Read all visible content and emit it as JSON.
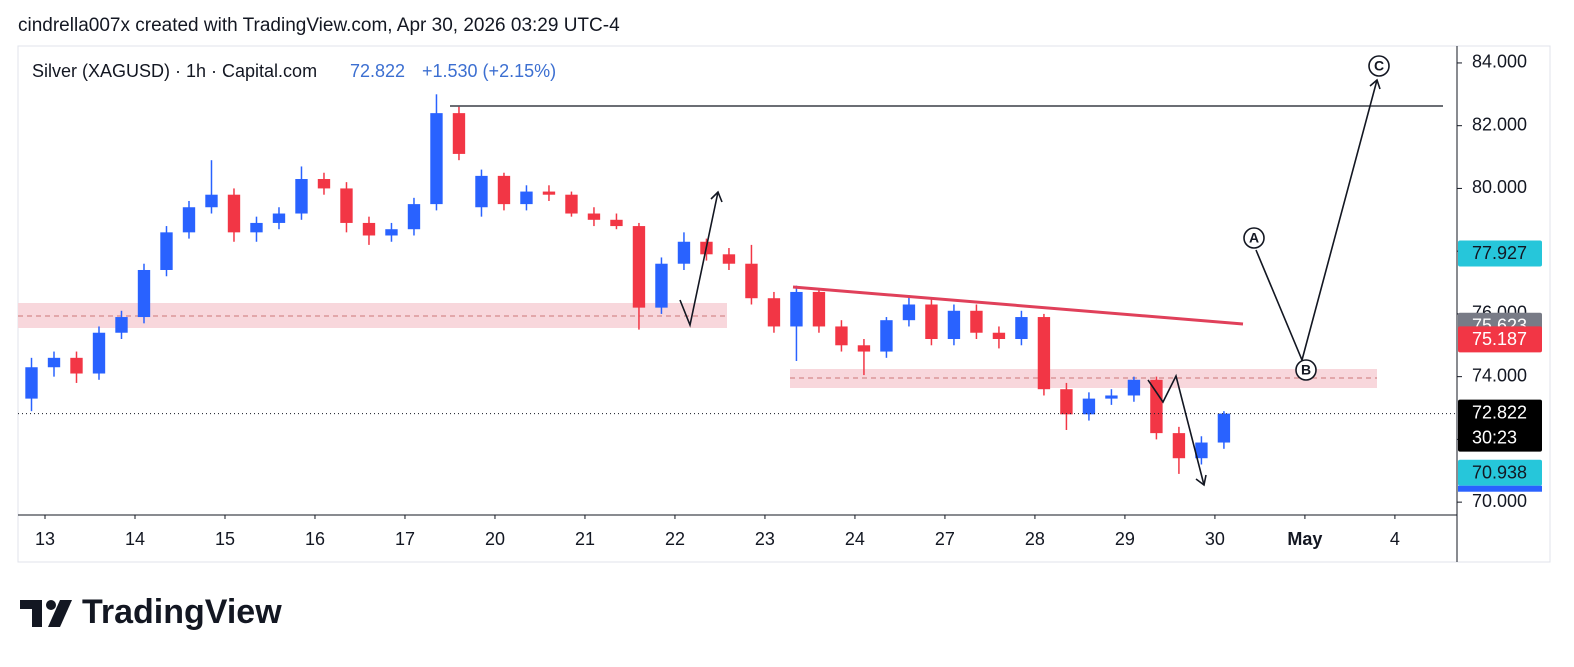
{
  "header": "cindrella007x created with TradingView.com, Apr 30, 2026 03:29 UTC-4",
  "brand": "TradingView",
  "chart_data": {
    "type": "candlestick",
    "title": "Silver (XAGUSD) · 1h · Capital.com",
    "change": "+1.530 (+2.15%)",
    "countdown": "30:23",
    "annotations": [
      "A",
      "B",
      "C"
    ],
    "up_color": "#2962ff",
    "down_color": "#f23645",
    "grid": false,
    "x": [
      -0.15,
      0.1,
      0.35,
      0.6,
      0.85,
      1.1,
      1.35,
      1.6,
      1.85,
      2.1,
      2.35,
      2.6,
      2.85,
      3.1,
      3.35,
      3.6,
      3.85,
      4.1,
      4.35,
      4.6,
      4.85,
      5.1,
      5.35,
      5.6,
      5.85,
      6.1,
      6.35,
      6.6,
      6.85,
      7.1,
      7.35,
      7.6,
      7.85,
      8.1,
      8.35,
      8.6,
      8.85,
      9.1,
      9.35,
      9.6,
      9.85,
      10.1,
      10.35,
      10.6,
      10.85,
      11.1,
      11.35,
      11.6,
      11.85,
      12.1,
      12.35,
      12.6,
      12.85,
      13.1
    ],
    "open": [
      73.3,
      74.3,
      74.6,
      74.1,
      75.4,
      75.9,
      77.4,
      78.6,
      79.4,
      79.8,
      78.6,
      78.9,
      79.2,
      80.3,
      80.0,
      78.9,
      78.5,
      78.7,
      79.5,
      82.4,
      79.4,
      80.4,
      79.5,
      79.9,
      79.8,
      79.2,
      79.0,
      78.8,
      76.2,
      77.6,
      78.3,
      77.9,
      77.6,
      76.5,
      75.6,
      76.7,
      75.6,
      75.0,
      74.8,
      75.8,
      76.3,
      75.2,
      76.1,
      75.4,
      75.2,
      75.9,
      73.6,
      72.8,
      73.3,
      73.4,
      73.9,
      72.2,
      71.4,
      71.9
    ],
    "high": [
      74.6,
      74.8,
      74.8,
      75.6,
      76.1,
      77.6,
      78.8,
      79.6,
      80.9,
      80.0,
      79.1,
      79.4,
      80.7,
      80.5,
      80.2,
      79.1,
      78.9,
      79.7,
      83.0,
      82.6,
      80.6,
      80.5,
      80.1,
      80.1,
      79.9,
      79.4,
      79.2,
      78.9,
      77.8,
      78.6,
      78.4,
      78.1,
      78.2,
      76.7,
      76.9,
      76.8,
      75.8,
      75.2,
      75.9,
      76.6,
      76.5,
      76.3,
      76.3,
      75.6,
      76.1,
      76.0,
      73.8,
      73.5,
      73.6,
      74.0,
      74.0,
      72.4,
      72.1,
      72.9
    ],
    "low": [
      72.9,
      74.0,
      73.8,
      73.9,
      75.2,
      75.7,
      77.2,
      78.4,
      79.2,
      78.3,
      78.3,
      78.7,
      79.0,
      79.8,
      78.6,
      78.2,
      78.3,
      78.5,
      79.3,
      80.9,
      79.1,
      79.3,
      79.3,
      79.6,
      79.1,
      78.8,
      78.7,
      75.5,
      76.0,
      77.4,
      77.7,
      77.4,
      76.3,
      75.4,
      74.5,
      75.4,
      74.8,
      74.05,
      74.6,
      75.6,
      75.0,
      75.0,
      75.2,
      74.9,
      75.0,
      73.4,
      72.3,
      72.6,
      73.1,
      73.2,
      72.0,
      70.9,
      71.2,
      71.7
    ],
    "close": [
      74.3,
      74.6,
      74.1,
      75.4,
      75.9,
      77.4,
      78.6,
      79.4,
      79.8,
      78.6,
      78.9,
      79.2,
      80.3,
      80.0,
      78.9,
      78.5,
      78.7,
      79.5,
      82.4,
      81.1,
      80.4,
      79.5,
      79.9,
      79.8,
      79.2,
      79.0,
      78.8,
      76.2,
      77.6,
      78.3,
      77.9,
      77.6,
      76.5,
      75.6,
      76.7,
      75.6,
      75.0,
      74.8,
      75.8,
      76.3,
      75.2,
      76.1,
      75.4,
      75.2,
      75.9,
      73.6,
      72.8,
      73.3,
      73.4,
      73.9,
      72.2,
      71.4,
      71.9,
      72.822
    ],
    "xlim": [
      -0.3,
      15.69
    ],
    "xticks": [
      {
        "value": 0,
        "label": "13"
      },
      {
        "value": 1,
        "label": "14"
      },
      {
        "value": 2,
        "label": "15"
      },
      {
        "value": 3,
        "label": "16"
      },
      {
        "value": 4,
        "label": "17"
      },
      {
        "value": 5,
        "label": "20"
      },
      {
        "value": 6,
        "label": "21"
      },
      {
        "value": 7,
        "label": "22"
      },
      {
        "value": 8,
        "label": "23"
      },
      {
        "value": 9,
        "label": "24"
      },
      {
        "value": 10,
        "label": "27"
      },
      {
        "value": 11,
        "label": "28"
      },
      {
        "value": 12,
        "label": "29"
      },
      {
        "value": 13,
        "label": "30"
      },
      {
        "value": 14,
        "label": "May"
      },
      {
        "value": 15,
        "label": "4"
      }
    ],
    "ylim": [
      69.59,
      84.54
    ],
    "yticks": [
      {
        "value": 70,
        "label": "70.000"
      },
      {
        "value": 72,
        "label": "72.000"
      },
      {
        "value": 74,
        "label": "74.000"
      },
      {
        "value": 76,
        "label": "76.000"
      },
      {
        "value": 78,
        "label": "78.000"
      },
      {
        "value": 80,
        "label": "80.000"
      },
      {
        "value": 82,
        "label": "82.000"
      },
      {
        "value": 84,
        "label": "84.000"
      }
    ],
    "price_labels": [
      {
        "value": 77.927,
        "color": "#26c6da",
        "text_color": "#131722"
      },
      {
        "value": 75.623,
        "color": "#787b86",
        "text_color": "#ffffff"
      },
      {
        "value": 75.187,
        "color": "#f23645",
        "text_color": "#ffffff"
      },
      {
        "value": 70.938,
        "color": "#26c6da",
        "text_color": "#131722"
      }
    ]
  }
}
